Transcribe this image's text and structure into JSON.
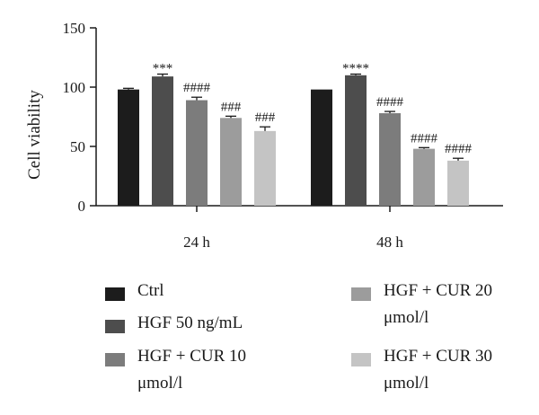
{
  "chart_data": {
    "type": "bar",
    "ylabel": "Cell viability",
    "ylim": [
      0,
      150
    ],
    "yticks": [
      "0",
      "50",
      "100",
      "150"
    ],
    "categories": [
      "24 h",
      "48 h"
    ],
    "series": [
      {
        "name": "Ctrl",
        "color": "#1c1c1c",
        "values": [
          98,
          98
        ],
        "errors": [
          1,
          0
        ],
        "annotations": [
          "",
          ""
        ]
      },
      {
        "name": "HGF 50 ng/mL",
        "color": "#4d4d4d",
        "values": [
          109,
          110
        ],
        "errors": [
          2,
          1
        ],
        "annotations": [
          "***",
          "****"
        ]
      },
      {
        "name": "HGF + CUR 10 μmol/l",
        "color": "#7c7c7c",
        "values": [
          89,
          78
        ],
        "errors": [
          2.5,
          1.5
        ],
        "annotations": [
          "####",
          "####"
        ]
      },
      {
        "name": "HGF + CUR 20 μmol/l",
        "color": "#9c9c9c",
        "values": [
          74,
          48
        ],
        "errors": [
          1.5,
          1
        ],
        "annotations": [
          "###",
          "####"
        ]
      },
      {
        "name": "HGF + CUR 30 μmol/l",
        "color": "#c4c4c4",
        "values": [
          63,
          38
        ],
        "errors": [
          3.5,
          2
        ],
        "annotations": [
          "###",
          "####"
        ]
      }
    ],
    "legend": {
      "position": "bottom",
      "columns": 2
    }
  }
}
